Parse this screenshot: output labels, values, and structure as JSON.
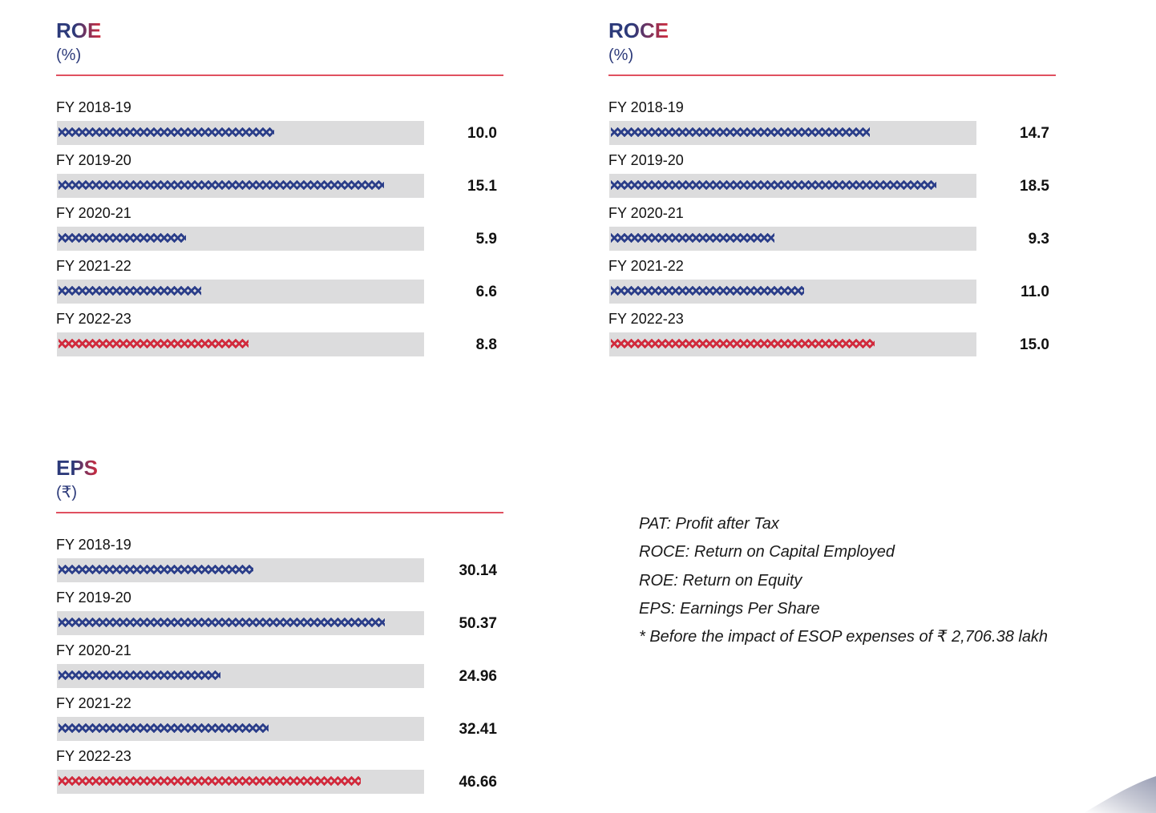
{
  "colors": {
    "title_blue": "#2c3a7a",
    "title_red": "#d12b3d",
    "rule": "#e05060",
    "track": "#dcdcdd",
    "bar_pattern": "#2c3f8a",
    "bar_highlight": "#d12b3d"
  },
  "chart_data": [
    {
      "type": "bar",
      "title": "ROE",
      "unit": "(%)",
      "categories": [
        "FY 2018-19",
        "FY 2019-20",
        "FY 2020-21",
        "FY 2021-22",
        "FY 2022-23"
      ],
      "values": [
        10.0,
        15.1,
        5.9,
        6.6,
        8.8
      ],
      "value_labels": [
        "10.0",
        "15.1",
        "5.9",
        "6.6",
        "8.8"
      ],
      "xlim": [
        0,
        16.8
      ],
      "highlight_category": "FY 2022-23"
    },
    {
      "type": "bar",
      "title": "ROCE",
      "unit": "(%)",
      "categories": [
        "FY 2018-19",
        "FY 2019-20",
        "FY 2020-21",
        "FY 2021-22",
        "FY 2022-23"
      ],
      "values": [
        14.7,
        18.5,
        9.3,
        11.0,
        15.0
      ],
      "value_labels": [
        "14.7",
        "18.5",
        "9.3",
        "11.0",
        "15.0"
      ],
      "xlim": [
        0,
        20.6
      ],
      "highlight_category": "FY 2022-23"
    },
    {
      "type": "bar",
      "title": "EPS",
      "unit": "(₹)",
      "categories": [
        "FY 2018-19",
        "FY 2019-20",
        "FY 2020-21",
        "FY 2021-22",
        "FY 2022-23"
      ],
      "values": [
        30.14,
        50.37,
        24.96,
        32.41,
        46.66
      ],
      "value_labels": [
        "30.14",
        "50.37",
        "24.96",
        "32.41",
        "46.66"
      ],
      "xlim": [
        0,
        56.0
      ],
      "highlight_category": "FY 2022-23"
    }
  ],
  "legend": {
    "lines": [
      "PAT: Profit after Tax",
      "ROCE: Return on Capital Employed",
      "ROE: Return on Equity",
      "EPS: Earnings Per Share",
      "* Before the impact of ESOP expenses of ₹ 2,706.38 lakh"
    ]
  }
}
